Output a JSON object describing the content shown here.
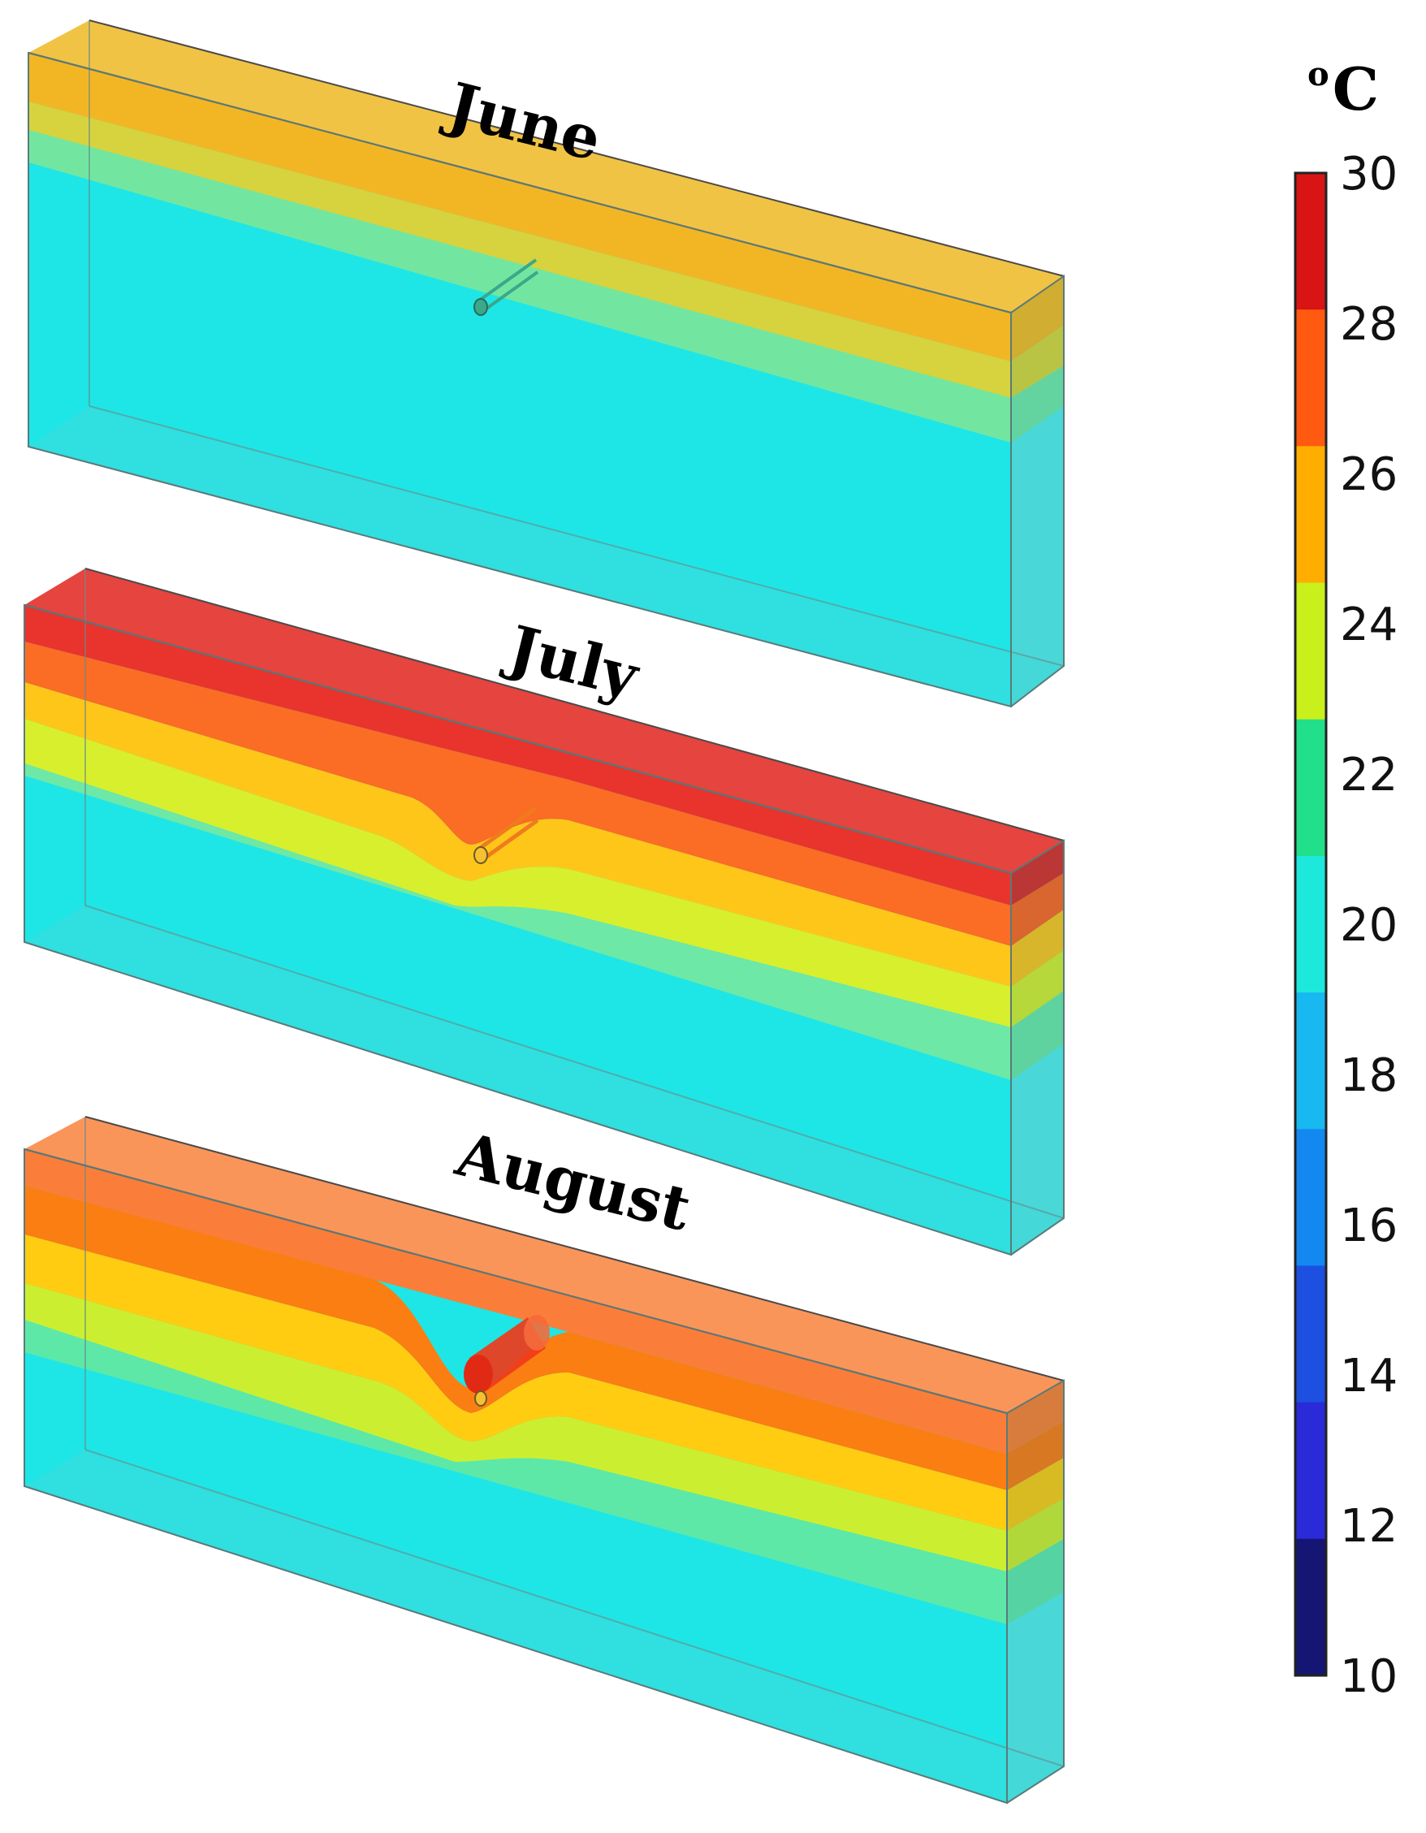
{
  "colorbar": {
    "unit_prefix": "o",
    "unit_letter": "C",
    "ticks": [
      "30",
      "28",
      "26",
      "24",
      "22",
      "20",
      "18",
      "16",
      "14",
      "12",
      "10"
    ],
    "min": 10,
    "max": 30,
    "band_colors": [
      "#d81414",
      "#ff5a10",
      "#ffae00",
      "#c9f01a",
      "#22e08a",
      "#1de8dc",
      "#18b8f0",
      "#1288f0",
      "#1d4fe0",
      "#2a2ad8",
      "#151573"
    ]
  },
  "panels": [
    {
      "month": "June",
      "surface_temperature": 25,
      "layer_colors": [
        "#f2b625",
        "#d6d33e",
        "#72e6a0",
        "#1ee6e6"
      ],
      "pipe_color": "#3aa88a"
    },
    {
      "month": "July",
      "surface_temperature": 29,
      "layer_colors": [
        "#e8342d",
        "#fb6c24",
        "#ffc61a",
        "#d8ef2e",
        "#6de8a6",
        "#1ee6e6"
      ],
      "pipe_color": "#f07a1e"
    },
    {
      "month": "August",
      "surface_temperature": 27,
      "layer_colors": [
        "#fa7e3a",
        "#fb7e12",
        "#ffcc12",
        "#cbef30",
        "#5de8a8",
        "#1ee6e6"
      ],
      "pipe_color": "#f03a1a"
    }
  ]
}
